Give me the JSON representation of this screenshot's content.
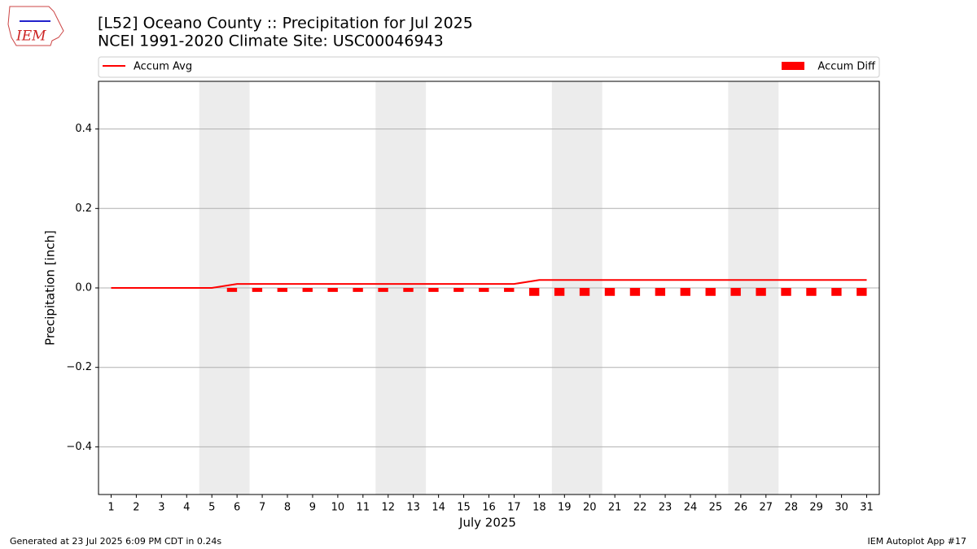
{
  "logo_text": "IEM",
  "footer_left": "Generated at 23 Jul 2025 6:09 PM CDT in 0.24s",
  "footer_right": "IEM Autoplot App #17",
  "chart_data": {
    "type": "line",
    "title": "[L52] Oceano County :: Precipitation for Jul 2025",
    "subtitle": "NCEI 1991-2020 Climate Site: USC00046943",
    "x_label": "July 2025",
    "y_label": "Precipitation [inch]",
    "x": [
      1,
      2,
      3,
      4,
      5,
      6,
      7,
      8,
      9,
      10,
      11,
      12,
      13,
      14,
      15,
      16,
      17,
      18,
      19,
      20,
      21,
      22,
      23,
      24,
      25,
      26,
      27,
      28,
      29,
      30,
      31
    ],
    "series": [
      {
        "name": "Accum Avg",
        "type": "line",
        "color": "#ff0000",
        "values": [
          0,
          0,
          0,
          0,
          0,
          0.01,
          0.01,
          0.01,
          0.01,
          0.01,
          0.01,
          0.01,
          0.01,
          0.01,
          0.01,
          0.01,
          0.01,
          0.02,
          0.02,
          0.02,
          0.02,
          0.02,
          0.02,
          0.02,
          0.02,
          0.02,
          0.02,
          0.02,
          0.02,
          0.02,
          0.02
        ]
      },
      {
        "name": "Accum Diff",
        "type": "bar",
        "color": "#ff0000",
        "values": [
          0,
          0,
          0,
          0,
          0,
          -0.01,
          -0.01,
          -0.01,
          -0.01,
          -0.01,
          -0.01,
          -0.01,
          -0.01,
          -0.01,
          -0.01,
          -0.01,
          -0.01,
          -0.02,
          -0.02,
          -0.02,
          -0.02,
          -0.02,
          -0.02,
          -0.02,
          -0.02,
          -0.02,
          -0.02,
          -0.02,
          -0.02,
          -0.02,
          -0.02
        ]
      }
    ],
    "shaded_spans": [
      [
        4.5,
        6.5
      ],
      [
        11.5,
        13.5
      ],
      [
        18.5,
        20.5
      ],
      [
        25.5,
        27.5
      ]
    ],
    "xlim": [
      0.5,
      31.5
    ],
    "xticks": [
      1,
      2,
      3,
      4,
      5,
      6,
      7,
      8,
      9,
      10,
      11,
      12,
      13,
      14,
      15,
      16,
      17,
      18,
      19,
      20,
      21,
      22,
      23,
      24,
      25,
      26,
      27,
      28,
      29,
      30,
      31
    ],
    "ylim": [
      -0.52,
      0.52
    ],
    "yticks": [
      {
        "value": -0.4,
        "label": "−0.4"
      },
      {
        "value": -0.2,
        "label": "−0.2"
      },
      {
        "value": 0,
        "label": "0.0"
      },
      {
        "value": 0.2,
        "label": "0.2"
      },
      {
        "value": 0.4,
        "label": "0.4"
      }
    ],
    "grid": true
  }
}
